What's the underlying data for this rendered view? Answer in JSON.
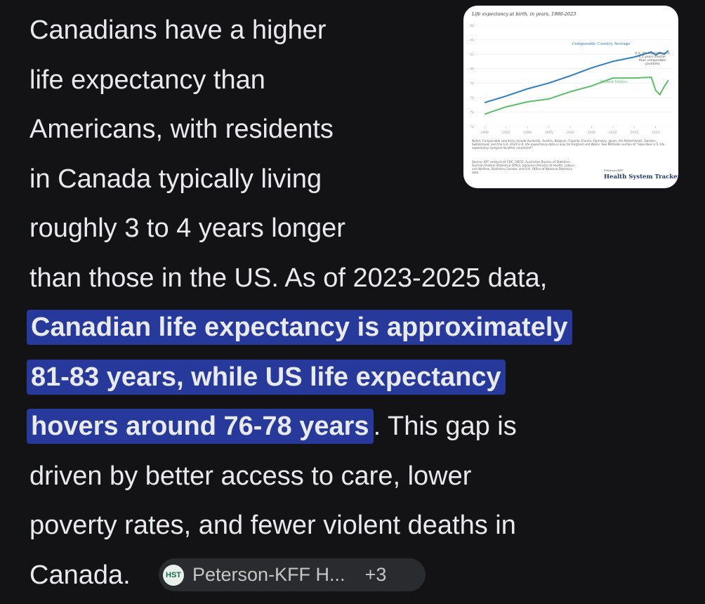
{
  "answer": {
    "lines": [
      [
        {
          "text": "Canadians have a higher"
        }
      ],
      [
        {
          "text": "life expectancy than"
        }
      ],
      [
        {
          "text": "Americans, with residents"
        }
      ],
      [
        {
          "text": "in Canada typically living"
        }
      ],
      [
        {
          "text": "roughly 3 to 4 years longer"
        }
      ],
      [
        {
          "text": "than those in the US. As of 2023-2025 data,"
        }
      ],
      [
        {
          "text": "Canadian life expectancy is approximately",
          "highlight": true
        }
      ],
      [
        {
          "text": "81-83 years, while US life expectancy",
          "highlight": true
        }
      ],
      [
        {
          "text": "hovers around 76-78 years",
          "highlight": true
        },
        {
          "text": ". This gap is"
        }
      ],
      [
        {
          "text": "driven by better access to care, lower"
        }
      ],
      [
        {
          "text": "poverty rates, and fewer violent deaths in"
        }
      ],
      [
        {
          "text": "Canada."
        }
      ]
    ],
    "citation": {
      "icon": "HST",
      "source": "Peterson-KFF H...",
      "more": "+3"
    }
  },
  "thumbnail": {
    "chart_data": {
      "type": "line",
      "title": "Life expectancy at birth, in years, 1980-2023",
      "series": [
        {
          "name": "Comparable Country Average",
          "color": "#2f7fc4",
          "x": [
            1980,
            1985,
            1990,
            1995,
            2000,
            2005,
            2010,
            2015,
            2019,
            2020,
            2021,
            2022,
            2023
          ],
          "values": [
            75.3,
            76.2,
            77.2,
            78.0,
            79.0,
            80.1,
            81.0,
            81.6,
            82.3,
            81.9,
            82.2,
            82.0,
            82.5
          ]
        },
        {
          "name": "United States",
          "color": "#5cbf6a",
          "x": [
            1980,
            1985,
            1990,
            1995,
            2000,
            2005,
            2010,
            2015,
            2019,
            2020,
            2021,
            2022,
            2023
          ],
          "values": [
            73.7,
            74.7,
            75.4,
            75.8,
            76.8,
            77.6,
            78.7,
            78.7,
            78.8,
            77.0,
            76.4,
            77.5,
            78.4
          ]
        }
      ],
      "xlim": [
        1978,
        2024
      ],
      "xticks": [
        1980,
        1985,
        1990,
        1995,
        2000,
        2005,
        2010,
        2015,
        2020
      ],
      "ylim": [
        72,
        86
      ],
      "yticks": [
        72,
        74,
        76,
        78,
        80,
        82,
        84,
        86
      ],
      "annotation": "U.S. life expectancy is 4.1 years shorter than comparable countries",
      "notes": "Notes: Comparable countries include Australia, Austria, Belgium, Canada, France, Germany, Japan, the Netherlands, Sweden, Switzerland, and the U.K. 2023 U.K. life expectancy data is only for England and Wales. See Methods section of \"How does U.S. life expectancy compare to other countries?\"",
      "source": "Source: KFF analysis of CDC, OECD, Australian Bureau of Statistics, German Federal Statistical Office, Japanese Ministry of Health, Labour, and Welfare, Statistics Canada, and U.K. Office of National Statistics data",
      "brand_small": "Peterson-KFF",
      "brand": "Health System Tracker"
    }
  }
}
